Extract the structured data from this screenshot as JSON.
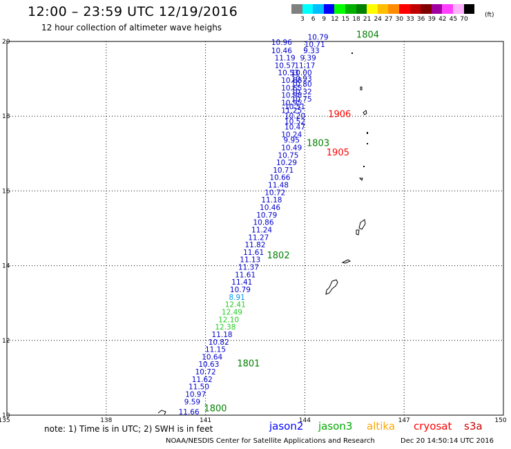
{
  "header": {
    "title": "12:00 – 23:59 UTC 12/19/2016",
    "subtitle": "12 hour collection of altimeter wave heighs"
  },
  "colorbar": {
    "unit": "(ft)",
    "bins": [
      {
        "label": "3",
        "color": "#808080"
      },
      {
        "label": "6",
        "color": "#00ffff"
      },
      {
        "label": "9",
        "color": "#00bfff"
      },
      {
        "label": "12",
        "color": "#0000ff"
      },
      {
        "label": "15",
        "color": "#00ff00"
      },
      {
        "label": "18",
        "color": "#00b000"
      },
      {
        "label": "21",
        "color": "#008000"
      },
      {
        "label": "24",
        "color": "#ffff00"
      },
      {
        "label": "27",
        "color": "#ffbf00"
      },
      {
        "label": "30",
        "color": "#ff8c00"
      },
      {
        "label": "33",
        "color": "#ff0000"
      },
      {
        "label": "36",
        "color": "#c00000"
      },
      {
        "label": "39",
        "color": "#800000"
      },
      {
        "label": "42",
        "color": "#a000a0"
      },
      {
        "label": "45",
        "color": "#ff40ff"
      },
      {
        "label": "70",
        "color": "#ffb0ff"
      },
      {
        "label": "",
        "color": "#000000"
      }
    ]
  },
  "axes": {
    "lon_ticks": [
      135,
      138,
      141,
      144,
      147,
      150
    ],
    "lat_ticks": [
      10,
      12,
      14,
      16,
      18,
      20
    ],
    "lon_range": [
      135,
      150
    ],
    "lat_range": [
      10,
      20
    ]
  },
  "track": {
    "color_default": "#0000cc",
    "points": [
      {
        "label": "11.66",
        "lon": 140.5,
        "lat": 10.02
      },
      {
        "label": "9.59",
        "lon": 140.6,
        "lat": 10.29
      },
      {
        "label": "10.97",
        "lon": 140.7,
        "lat": 10.49
      },
      {
        "label": "11.50",
        "lon": 140.8,
        "lat": 10.69
      },
      {
        "label": "11.62",
        "lon": 140.9,
        "lat": 10.89
      },
      {
        "label": "10.72",
        "lon": 141.0,
        "lat": 11.09
      },
      {
        "label": "10.63",
        "lon": 141.1,
        "lat": 11.29
      },
      {
        "label": "10.64",
        "lon": 141.2,
        "lat": 11.49
      },
      {
        "label": "11.15",
        "lon": 141.3,
        "lat": 11.69
      },
      {
        "label": "10.82",
        "lon": 141.4,
        "lat": 11.89
      },
      {
        "label": "11.18",
        "lon": 141.5,
        "lat": 12.09
      },
      {
        "label": "12.38",
        "lon": 141.6,
        "lat": 12.29,
        "color": "#22cc22"
      },
      {
        "label": "12.10",
        "lon": 141.7,
        "lat": 12.49,
        "color": "#22cc22"
      },
      {
        "label": "12.49",
        "lon": 141.8,
        "lat": 12.69,
        "color": "#22cc22"
      },
      {
        "label": "12.41",
        "lon": 141.9,
        "lat": 12.89,
        "color": "#22cc22"
      },
      {
        "label": "8.91",
        "lon": 141.95,
        "lat": 13.09,
        "color": "#0099ee"
      },
      {
        "label": "10.79",
        "lon": 142.05,
        "lat": 13.29
      },
      {
        "label": "11.41",
        "lon": 142.1,
        "lat": 13.49
      },
      {
        "label": "11.61",
        "lon": 142.2,
        "lat": 13.69
      },
      {
        "label": "11.37",
        "lon": 142.3,
        "lat": 13.89
      },
      {
        "label": "11.13",
        "lon": 142.35,
        "lat": 14.09
      },
      {
        "label": "11.61",
        "lon": 142.45,
        "lat": 14.29
      },
      {
        "label": "11.82",
        "lon": 142.5,
        "lat": 14.49
      },
      {
        "label": "11.27",
        "lon": 142.6,
        "lat": 14.69
      },
      {
        "label": "11.24",
        "lon": 142.7,
        "lat": 14.89
      },
      {
        "label": "10.86",
        "lon": 142.75,
        "lat": 15.09
      },
      {
        "label": "10.79",
        "lon": 142.85,
        "lat": 15.29
      },
      {
        "label": "10.46",
        "lon": 142.95,
        "lat": 15.49
      },
      {
        "label": "11.18",
        "lon": 143.0,
        "lat": 15.69
      },
      {
        "label": "10.72",
        "lon": 143.1,
        "lat": 15.89
      },
      {
        "label": "11.48",
        "lon": 143.2,
        "lat": 16.09
      },
      {
        "label": "10.66",
        "lon": 143.25,
        "lat": 16.29
      },
      {
        "label": "10.71",
        "lon": 143.35,
        "lat": 16.49
      },
      {
        "label": "10.29",
        "lon": 143.45,
        "lat": 16.69
      },
      {
        "label": "10.75",
        "lon": 143.5,
        "lat": 16.89
      },
      {
        "label": "10.49",
        "lon": 143.6,
        "lat": 17.09
      },
      {
        "label": "9.95",
        "lon": 143.6,
        "lat": 17.29
      },
      {
        "label": "10.24",
        "lon": 143.6,
        "lat": 17.44
      },
      {
        "label": "10.47",
        "lon": 143.7,
        "lat": 17.64
      },
      {
        "label": "10.52",
        "lon": 143.7,
        "lat": 17.79
      },
      {
        "label": "10.20",
        "lon": 143.7,
        "lat": 17.94
      },
      {
        "label": "11.25",
        "lon": 143.6,
        "lat": 18.09
      },
      {
        "label": "10.51",
        "lon": 143.7,
        "lat": 18.19
      },
      {
        "label": "10.95",
        "lon": 143.6,
        "lat": 18.29
      },
      {
        "label": "10.75",
        "lon": 143.9,
        "lat": 18.39
      },
      {
        "label": "10.98",
        "lon": 143.6,
        "lat": 18.49
      },
      {
        "label": "10.32",
        "lon": 143.9,
        "lat": 18.59
      },
      {
        "label": "10.65",
        "lon": 143.6,
        "lat": 18.69
      },
      {
        "label": "10.80",
        "lon": 143.9,
        "lat": 18.79
      },
      {
        "label": "10.68",
        "lon": 143.6,
        "lat": 18.89
      },
      {
        "label": "10.93",
        "lon": 143.9,
        "lat": 18.94
      },
      {
        "label": "10.53",
        "lon": 143.5,
        "lat": 19.09
      },
      {
        "label": "10.00",
        "lon": 143.9,
        "lat": 19.09
      },
      {
        "label": "10.57",
        "lon": 143.4,
        "lat": 19.29
      },
      {
        "label": "11.17",
        "lon": 144.0,
        "lat": 19.29
      },
      {
        "label": "11.19",
        "lon": 143.4,
        "lat": 19.49
      },
      {
        "label": "9.39",
        "lon": 144.1,
        "lat": 19.49
      },
      {
        "label": "10.46",
        "lon": 143.3,
        "lat": 19.69
      },
      {
        "label": "9.33",
        "lon": 144.2,
        "lat": 19.69
      },
      {
        "label": "10.71",
        "lon": 144.3,
        "lat": 19.85
      },
      {
        "label": "10.96",
        "lon": 143.3,
        "lat": 19.91
      },
      {
        "label": "10.79",
        "lon": 144.4,
        "lat": 20.05
      }
    ]
  },
  "passes": [
    {
      "label": "1800",
      "lon": 141.3,
      "lat": 10.1,
      "color": "#008000"
    },
    {
      "label": "1801",
      "lon": 142.3,
      "lat": 11.3,
      "color": "#008000"
    },
    {
      "label": "1802",
      "lon": 143.2,
      "lat": 14.2,
      "color": "#008000"
    },
    {
      "label": "1803",
      "lon": 144.4,
      "lat": 17.2,
      "color": "#008000"
    },
    {
      "label": "1905",
      "lon": 145.0,
      "lat": 16.95,
      "color": "#ff0000"
    },
    {
      "label": "1906",
      "lon": 145.05,
      "lat": 17.98,
      "color": "#ff0000"
    },
    {
      "label": "1804",
      "lon": 145.9,
      "lat": 20.1,
      "color": "#008000"
    }
  ],
  "footer": {
    "note": "note: 1) Time is in UTC; 2) SWH is in feet",
    "legend": [
      {
        "name": "jason2",
        "color": "#0000ff"
      },
      {
        "name": "jason3",
        "color": "#00aa00"
      },
      {
        "name": "altika",
        "color": "#ffa500"
      },
      {
        "name": "cryosat",
        "color": "#ff0000"
      },
      {
        "name": "s3a",
        "color": "#cc0000"
      }
    ],
    "credit": "NOAA/NESDIS Center for Satellite Applications and Research",
    "timestamp": "Dec 20 14:50:14 UTC 2016"
  }
}
